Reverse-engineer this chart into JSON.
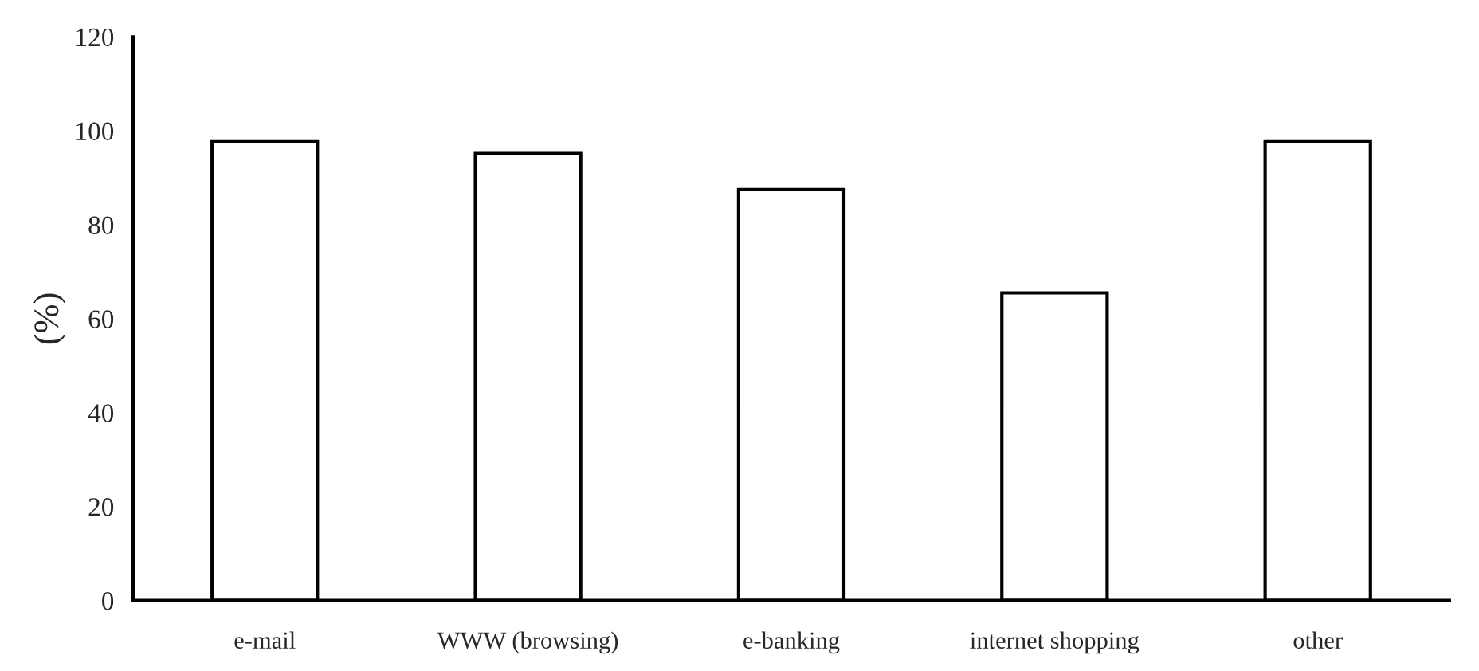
{
  "chart_data": {
    "type": "bar",
    "ylabel": "(%)",
    "categories": [
      "e-mail",
      "WWW (browsing)",
      "e-banking",
      "internet shopping",
      "other"
    ],
    "values": [
      97.7,
      95.2,
      87.5,
      65.5,
      97.7
    ],
    "color": "#ffffff",
    "ylim": [
      0,
      120
    ],
    "yticks": [
      0,
      20,
      40,
      60,
      80,
      100,
      120
    ],
    "grid": false,
    "legend": false
  }
}
